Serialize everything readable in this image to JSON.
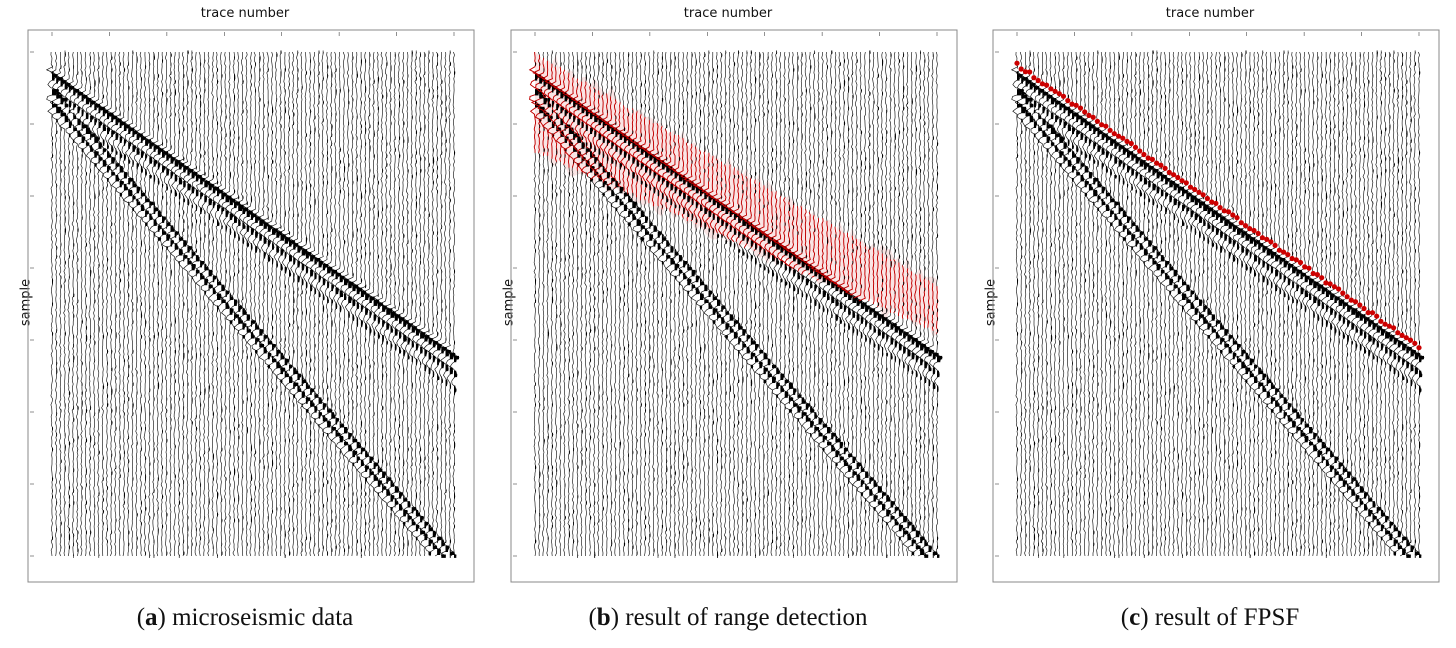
{
  "figure": {
    "panels": [
      {
        "letter": "a",
        "caption_text": " microseismic data",
        "overlay": "none"
      },
      {
        "letter": "b",
        "caption_text": " result of range detection",
        "overlay": "range"
      },
      {
        "letter": "c",
        "caption_text": " result of FPSF",
        "overlay": "picks"
      }
    ],
    "colors": {
      "trace": "#000000",
      "overlay": "#cc0000",
      "frame": "#888888",
      "background": "#ffffff"
    }
  },
  "chart_data": {
    "type": "seismic-wiggle",
    "xlabel": "trace number",
    "ylabel": "sample",
    "n_traces": 96,
    "n_samples": 1000,
    "first_break": {
      "trace_start": 1,
      "sample_start": 40,
      "trace_end": 96,
      "sample_end": 600
    },
    "range_detection": {
      "trace_start": 1,
      "sample_top": 0,
      "sample_bottom": 200,
      "trace_end": 96,
      "sample_end_top": 460,
      "sample_end_bottom": 560
    },
    "fpsf_picks": {
      "trace_start": 1,
      "sample_start": 25,
      "trace_end": 96,
      "sample_end": 585
    }
  }
}
